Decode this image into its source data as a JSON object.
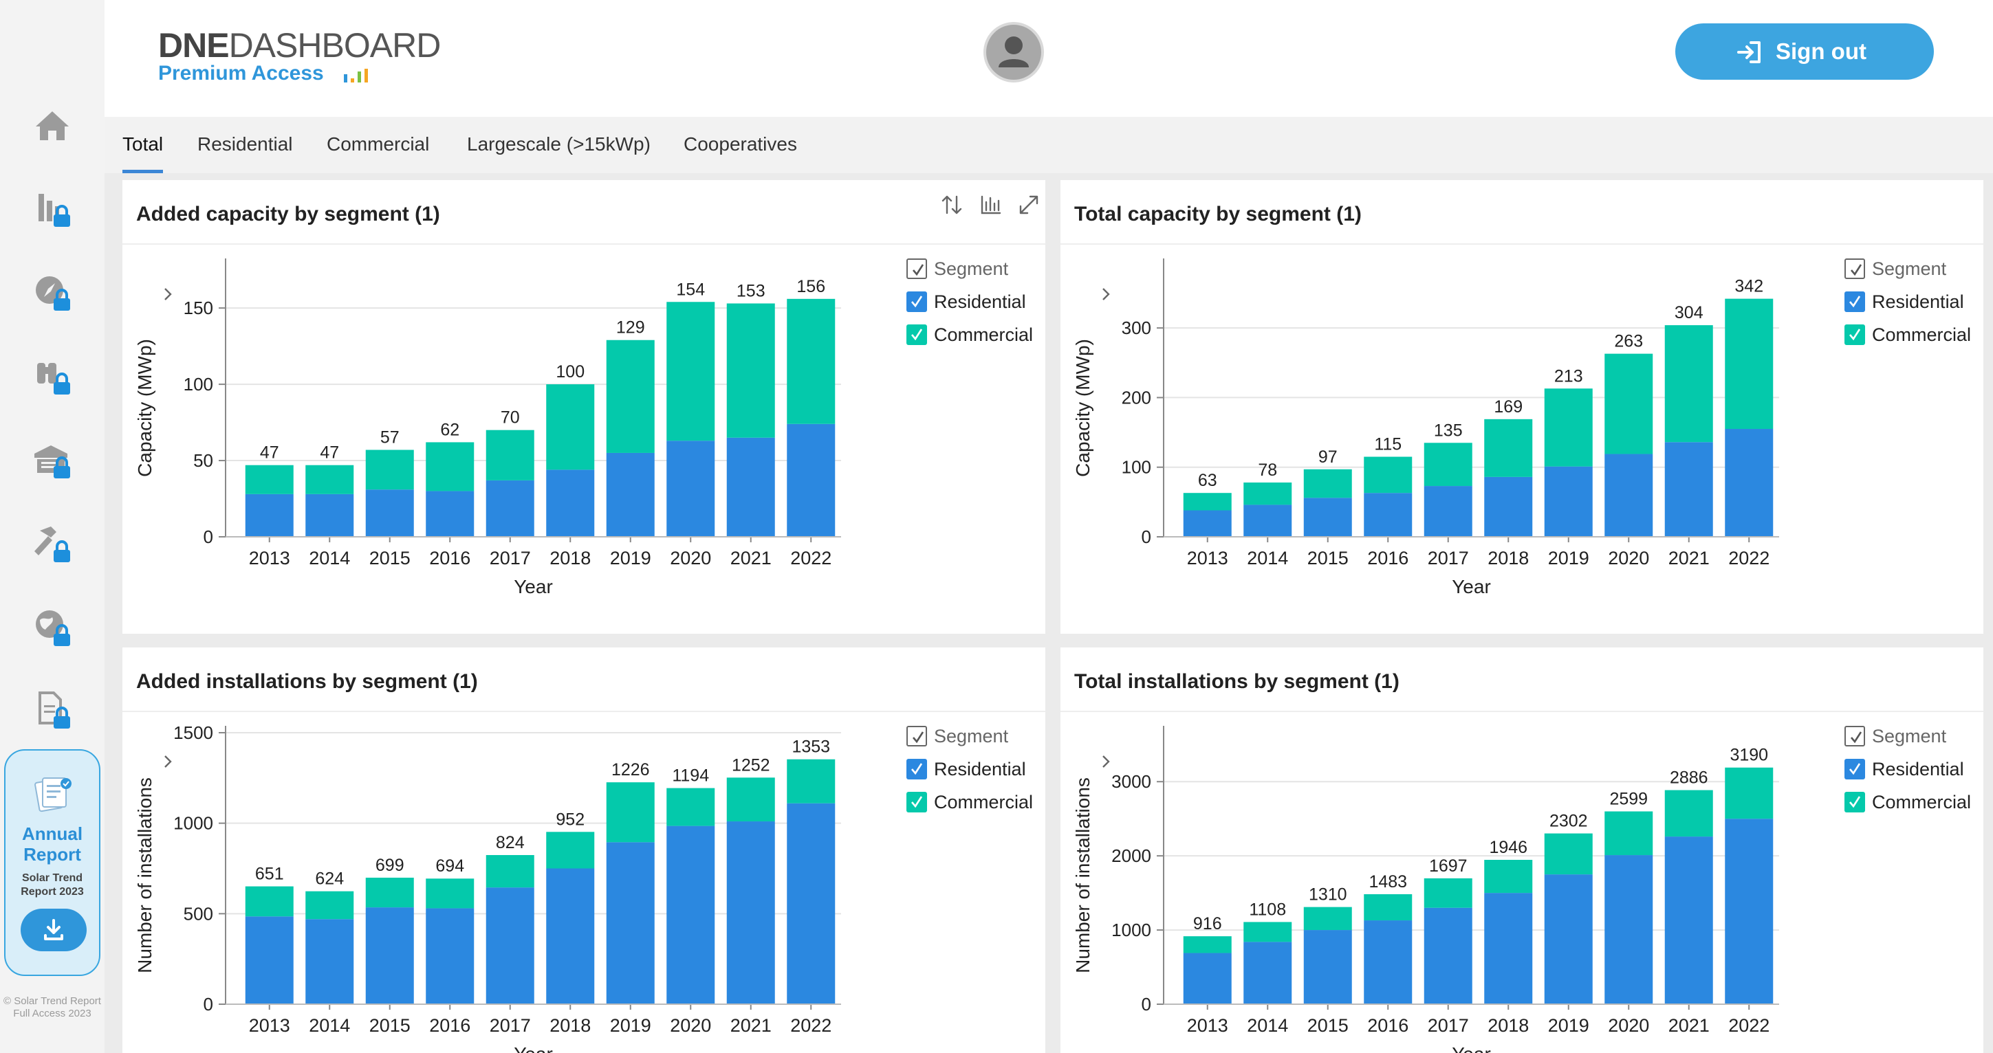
{
  "app": {
    "logo_bold": "DNE",
    "logo_light": "DASHBOARD",
    "logo_sub": "Premium Access",
    "signout_label": "Sign out"
  },
  "colors": {
    "accent": "#3da5e0",
    "residential": "#2b88e0",
    "commercial": "#04c9ab",
    "sidebar_lock": "#1d8fdc"
  },
  "sidebar": {
    "items": [
      {
        "icon": "home-icon"
      },
      {
        "icon": "bar-chart-locked-icon"
      },
      {
        "icon": "compass-locked-icon"
      },
      {
        "icon": "binoculars-locked-icon"
      },
      {
        "icon": "warehouse-locked-icon"
      },
      {
        "icon": "hammer-locked-icon"
      },
      {
        "icon": "globe-locked-icon"
      },
      {
        "icon": "document-locked-icon"
      }
    ],
    "promo": {
      "title": "Annual Report",
      "subtitle": "Solar Trend Report 2023"
    },
    "copyright": "© Solar Trend Report Full Access 2023"
  },
  "tabs": [
    {
      "label": "Total",
      "active": true
    },
    {
      "label": "Residential",
      "active": false
    },
    {
      "label": "Commercial",
      "active": false
    },
    {
      "label": "Largescale (>15kWp)",
      "active": false
    },
    {
      "label": "Cooperatives",
      "active": false
    }
  ],
  "legend": {
    "header": "Segment",
    "residential": "Residential",
    "commercial": "Commercial"
  },
  "chart_data": [
    {
      "type": "bar",
      "stacked": true,
      "title": "Added capacity by segment (1)",
      "xlabel": "Year",
      "ylabel": "Capacity (MWp)",
      "ylim": [
        0,
        178
      ],
      "yticks": [
        0,
        50,
        100,
        150
      ],
      "categories": [
        "2013",
        "2014",
        "2015",
        "2016",
        "2017",
        "2018",
        "2019",
        "2020",
        "2021",
        "2022"
      ],
      "series": [
        {
          "name": "Residential",
          "values": [
            28,
            28,
            31,
            30,
            37,
            44,
            55,
            63,
            65,
            74
          ]
        },
        {
          "name": "Commercial",
          "values": [
            19,
            19,
            26,
            32,
            33,
            56,
            74,
            91,
            88,
            82
          ]
        }
      ],
      "totals": [
        47,
        47,
        57,
        62,
        70,
        100,
        129,
        154,
        153,
        156
      ]
    },
    {
      "type": "bar",
      "stacked": true,
      "title": "Total capacity by segment (1)",
      "xlabel": "Year",
      "ylabel": "Capacity (MWp)",
      "ylim": [
        0,
        390
      ],
      "yticks": [
        0,
        100,
        200,
        300
      ],
      "categories": [
        "2013",
        "2014",
        "2015",
        "2016",
        "2017",
        "2018",
        "2019",
        "2020",
        "2021",
        "2022"
      ],
      "series": [
        {
          "name": "Residential",
          "values": [
            38,
            46,
            56,
            63,
            73,
            86,
            101,
            119,
            136,
            155
          ]
        },
        {
          "name": "Commercial",
          "values": [
            25,
            32,
            41,
            52,
            62,
            83,
            112,
            144,
            168,
            187
          ]
        }
      ],
      "totals": [
        63,
        78,
        97,
        115,
        135,
        169,
        213,
        263,
        304,
        342
      ]
    },
    {
      "type": "bar",
      "stacked": true,
      "title": "Added installations by segment (1)",
      "xlabel": "Year",
      "ylabel": "Number of installations",
      "ylim": [
        0,
        1500
      ],
      "yticks": [
        0,
        500,
        1000,
        1500
      ],
      "categories": [
        "2013",
        "2014",
        "2015",
        "2016",
        "2017",
        "2018",
        "2019",
        "2020",
        "2021",
        "2022"
      ],
      "series": [
        {
          "name": "Residential",
          "values": [
            485,
            470,
            535,
            530,
            645,
            750,
            895,
            985,
            1010,
            1110
          ]
        },
        {
          "name": "Commercial",
          "values": [
            166,
            154,
            164,
            164,
            179,
            202,
            331,
            209,
            242,
            243
          ]
        }
      ],
      "totals": [
        651,
        624,
        699,
        694,
        824,
        952,
        1226,
        1194,
        1252,
        1353
      ]
    },
    {
      "type": "bar",
      "stacked": true,
      "title": "Total installations by segment (1)",
      "xlabel": "Year",
      "ylabel": "Number of installations",
      "ylim": [
        0,
        3660
      ],
      "yticks": [
        0,
        1000,
        2000,
        3000
      ],
      "categories": [
        "2013",
        "2014",
        "2015",
        "2016",
        "2017",
        "2018",
        "2019",
        "2020",
        "2021",
        "2022"
      ],
      "series": [
        {
          "name": "Residential",
          "values": [
            690,
            840,
            1000,
            1130,
            1300,
            1500,
            1750,
            2010,
            2260,
            2500
          ]
        },
        {
          "name": "Commercial",
          "values": [
            226,
            268,
            310,
            353,
            397,
            446,
            552,
            589,
            626,
            690
          ]
        }
      ],
      "totals": [
        916,
        1108,
        1310,
        1483,
        1697,
        1946,
        2302,
        2599,
        2886,
        3190
      ]
    }
  ]
}
